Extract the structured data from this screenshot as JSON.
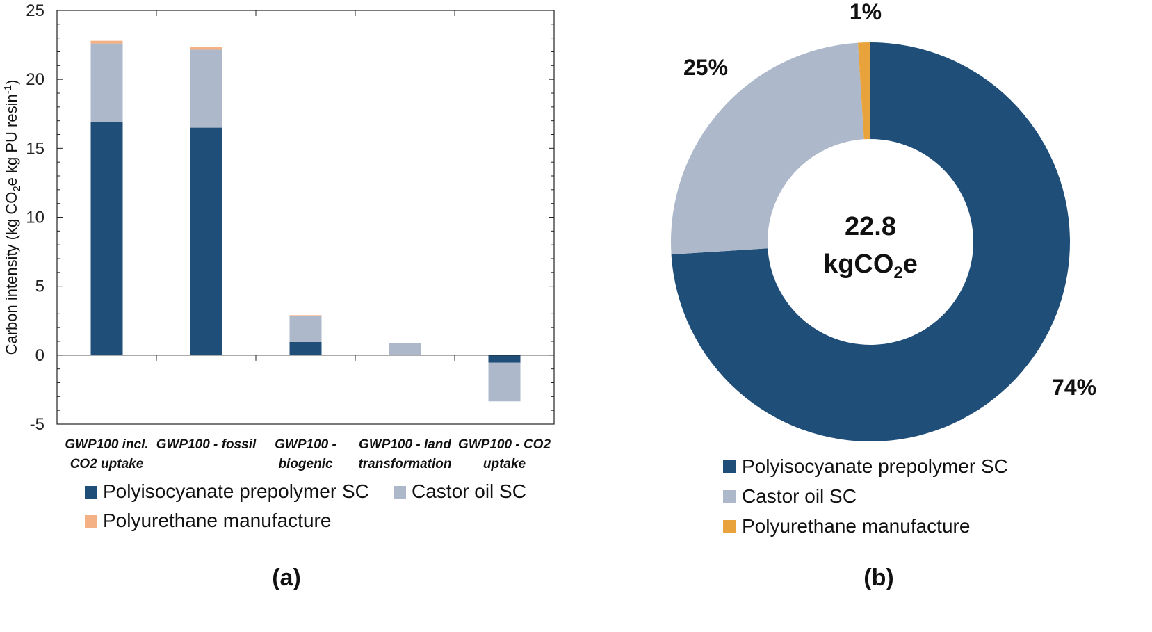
{
  "chart_data": [
    {
      "type": "bar",
      "stacked": true,
      "panel_label": "(a)",
      "categories": [
        [
          "GWP100 incl.",
          "CO2 uptake"
        ],
        [
          "GWP100 - fossil"
        ],
        [
          "GWP100 -",
          "biogenic"
        ],
        [
          "GWP100 - land",
          "transformation"
        ],
        [
          "GWP100 - CO2",
          "uptake"
        ]
      ],
      "series": [
        {
          "name": "Polyisocyanate prepolymer SC",
          "color": "#1f4e79",
          "values": [
            16.9,
            16.5,
            0.95,
            0.0,
            -0.55
          ]
        },
        {
          "name": "Castor oil SC",
          "color": "#adb9ca",
          "values": [
            5.7,
            5.65,
            1.9,
            0.85,
            -2.8
          ]
        },
        {
          "name": "Polyurethane manufacture",
          "color": "#f4b183",
          "values": [
            0.2,
            0.2,
            0.05,
            0.0,
            0.0
          ]
        }
      ],
      "ylabel_parts": [
        "Carbon intensity (kg CO",
        "2",
        "e kg PU resin",
        "-1",
        ")"
      ],
      "ylim": [
        -5,
        25
      ],
      "yticks": [
        "-5",
        "0",
        "5",
        "10",
        "15",
        "20",
        "25"
      ],
      "grid": false,
      "legend_position": "bottom"
    },
    {
      "type": "pie",
      "donut": true,
      "panel_label": "(b)",
      "center_value": "22.8",
      "center_unit_parts": [
        "kgCO",
        "2",
        "e"
      ],
      "slices": [
        {
          "name": "Polyisocyanate prepolymer SC",
          "value": 74,
          "label": "74%",
          "color": "#1f4e79"
        },
        {
          "name": "Castor oil SC",
          "value": 25,
          "label": "25%",
          "color": "#adb9ca"
        },
        {
          "name": "Polyurethane manufacture",
          "value": 1,
          "label": "1%",
          "color": "#e8a33d"
        }
      ],
      "legend_position": "bottom"
    }
  ]
}
